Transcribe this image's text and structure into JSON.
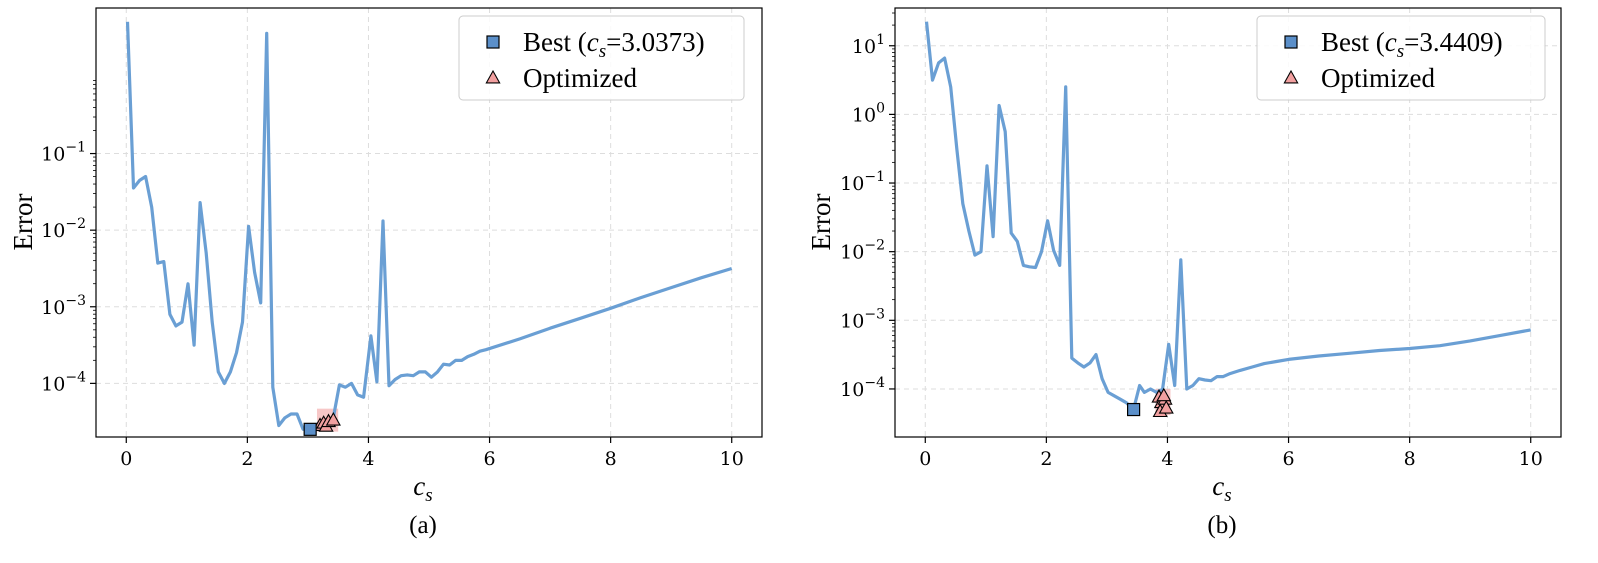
{
  "colors": {
    "line": "#6a9fd4",
    "best_marker": "#5b8fc9",
    "optimized_marker": "#f2a0a0",
    "highlight": "#f4b4b4",
    "grid": "#dddddd"
  },
  "chart_data": [
    {
      "type": "line",
      "caption": "(a)",
      "xlabel": "c_s",
      "ylabel": "Error",
      "xlim": [
        -0.5,
        10.5
      ],
      "ylim_log10": [
        -4.7,
        0.9
      ],
      "xticks": [
        0,
        2,
        4,
        6,
        8,
        10
      ],
      "xtick_labels": [
        "0",
        "2",
        "4",
        "6",
        "8",
        "10"
      ],
      "yticks_log10": [
        -4,
        -3,
        -2,
        -1
      ],
      "ytick_labels": [
        "10",
        "10",
        "10",
        "10"
      ],
      "ytick_exponents": [
        "−4",
        "−3",
        "−2",
        "−1"
      ],
      "grid": true,
      "legend_position": "top-right",
      "legend": {
        "best_label": "Best (",
        "best_symbol": "c",
        "best_subscript": "s",
        "best_value": "=3.0373)",
        "optimized_label": "Optimized"
      },
      "series": [
        {
          "name": "Error",
          "x": [
            0.02,
            0.12,
            0.22,
            0.32,
            0.42,
            0.52,
            0.62,
            0.72,
            0.82,
            0.92,
            1.02,
            1.12,
            1.22,
            1.32,
            1.42,
            1.52,
            1.62,
            1.72,
            1.82,
            1.92,
            2.02,
            2.12,
            2.22,
            2.32,
            2.42,
            2.52,
            2.62,
            2.72,
            2.82,
            2.92,
            3.04,
            3.12,
            3.22,
            3.32,
            3.42,
            3.52,
            3.62,
            3.72,
            3.82,
            3.92,
            4.04,
            4.14,
            4.24,
            4.34,
            4.44,
            4.54,
            4.64,
            4.74,
            4.84,
            4.94,
            5.04,
            5.14,
            5.24,
            5.34,
            5.44,
            5.54,
            5.64,
            5.74,
            5.84,
            5.94,
            6.5,
            7.0,
            7.5,
            8.0,
            8.5,
            9.0,
            9.5,
            10.0
          ],
          "log10_y": [
            0.72,
            -1.45,
            -1.35,
            -1.3,
            -1.7,
            -2.43,
            -2.41,
            -3.1,
            -3.25,
            -3.2,
            -2.7,
            -3.5,
            -1.64,
            -2.3,
            -3.2,
            -3.85,
            -4.0,
            -3.85,
            -3.6,
            -3.2,
            -1.95,
            -2.55,
            -2.95,
            0.57,
            -4.05,
            -4.55,
            -4.45,
            -4.4,
            -4.4,
            -4.6,
            -4.6,
            -4.55,
            -4.5,
            -4.5,
            -4.45,
            -4.02,
            -4.05,
            -4.0,
            -4.15,
            -4.18,
            -3.38,
            -3.98,
            -1.88,
            -4.03,
            -3.95,
            -3.9,
            -3.89,
            -3.9,
            -3.85,
            -3.85,
            -3.92,
            -3.85,
            -3.75,
            -3.76,
            -3.7,
            -3.7,
            -3.65,
            -3.62,
            -3.58,
            -3.56,
            -3.42,
            -3.28,
            -3.15,
            -3.02,
            -2.88,
            -2.75,
            -2.62,
            -2.5
          ]
        }
      ],
      "best_point": {
        "x": 3.0373,
        "log10_y": -4.6
      },
      "optimized_points": [
        {
          "x": 3.2,
          "log10_y": -4.55
        },
        {
          "x": 3.26,
          "log10_y": -4.52
        },
        {
          "x": 3.3,
          "log10_y": -4.56
        },
        {
          "x": 3.34,
          "log10_y": -4.5
        },
        {
          "x": 3.42,
          "log10_y": -4.48
        }
      ],
      "highlight_box": {
        "x0": 3.15,
        "x1": 3.5,
        "log10_y0": -4.63,
        "log10_y1": -4.33
      }
    },
    {
      "type": "line",
      "caption": "(b)",
      "xlabel": "c_s",
      "ylabel": "Error",
      "xlim": [
        -0.5,
        10.5
      ],
      "ylim_log10": [
        -4.7,
        1.55
      ],
      "xticks": [
        0,
        2,
        4,
        6,
        8,
        10
      ],
      "xtick_labels": [
        "0",
        "2",
        "4",
        "6",
        "8",
        "10"
      ],
      "yticks_log10": [
        -4,
        -3,
        -2,
        -1,
        0,
        1
      ],
      "ytick_labels": [
        "10",
        "10",
        "10",
        "10",
        "10",
        "10"
      ],
      "ytick_exponents": [
        "−4",
        "−3",
        "−2",
        "−1",
        "0",
        "1"
      ],
      "grid": true,
      "legend_position": "top-right",
      "legend": {
        "best_label": "Best (",
        "best_symbol": "c",
        "best_subscript": "s",
        "best_value": "=3.4409)",
        "optimized_label": "Optimized"
      },
      "series": [
        {
          "name": "Error",
          "x": [
            0.02,
            0.12,
            0.22,
            0.32,
            0.42,
            0.52,
            0.62,
            0.72,
            0.82,
            0.92,
            1.02,
            1.12,
            1.22,
            1.32,
            1.42,
            1.52,
            1.62,
            1.72,
            1.82,
            1.92,
            2.02,
            2.12,
            2.22,
            2.32,
            2.42,
            2.52,
            2.62,
            2.72,
            2.82,
            2.92,
            3.02,
            3.12,
            3.22,
            3.32,
            3.44,
            3.54,
            3.62,
            3.72,
            3.82,
            3.92,
            4.02,
            4.12,
            4.22,
            4.32,
            4.42,
            4.52,
            4.62,
            4.72,
            4.82,
            4.92,
            5.02,
            5.2,
            5.4,
            5.6,
            5.8,
            6.0,
            6.5,
            7.0,
            7.5,
            8.0,
            8.5,
            9.0,
            9.5,
            10.0
          ],
          "log10_y": [
            1.35,
            0.5,
            0.75,
            0.82,
            0.4,
            -0.5,
            -1.3,
            -1.7,
            -2.05,
            -2.0,
            -0.75,
            -1.78,
            0.13,
            -0.25,
            -1.73,
            -1.85,
            -2.2,
            -2.22,
            -2.23,
            -2.0,
            -1.55,
            -1.98,
            -2.2,
            0.4,
            -3.55,
            -3.62,
            -3.68,
            -3.62,
            -3.5,
            -3.85,
            -4.05,
            -4.1,
            -4.15,
            -4.2,
            -4.3,
            -3.95,
            -4.05,
            -4.0,
            -4.05,
            -4.0,
            -3.35,
            -3.95,
            -2.12,
            -4.0,
            -3.95,
            -3.85,
            -3.87,
            -3.88,
            -3.82,
            -3.82,
            -3.78,
            -3.73,
            -3.68,
            -3.63,
            -3.6,
            -3.57,
            -3.52,
            -3.48,
            -3.44,
            -3.41,
            -3.37,
            -3.3,
            -3.22,
            -3.14
          ]
        }
      ],
      "best_point": {
        "x": 3.4409,
        "log10_y": -4.3
      },
      "optimized_points": [
        {
          "x": 3.86,
          "log10_y": -4.12
        },
        {
          "x": 3.9,
          "log10_y": -4.2
        },
        {
          "x": 3.93,
          "log10_y": -4.25
        },
        {
          "x": 3.96,
          "log10_y": -4.15
        },
        {
          "x": 3.88,
          "log10_y": -4.33
        },
        {
          "x": 3.98,
          "log10_y": -4.28
        },
        {
          "x": 3.94,
          "log10_y": -4.1
        }
      ],
      "highlight_box": {
        "x0": 3.8,
        "x1": 4.05,
        "log10_y0": -4.38,
        "log10_y1": -4.0
      }
    }
  ]
}
